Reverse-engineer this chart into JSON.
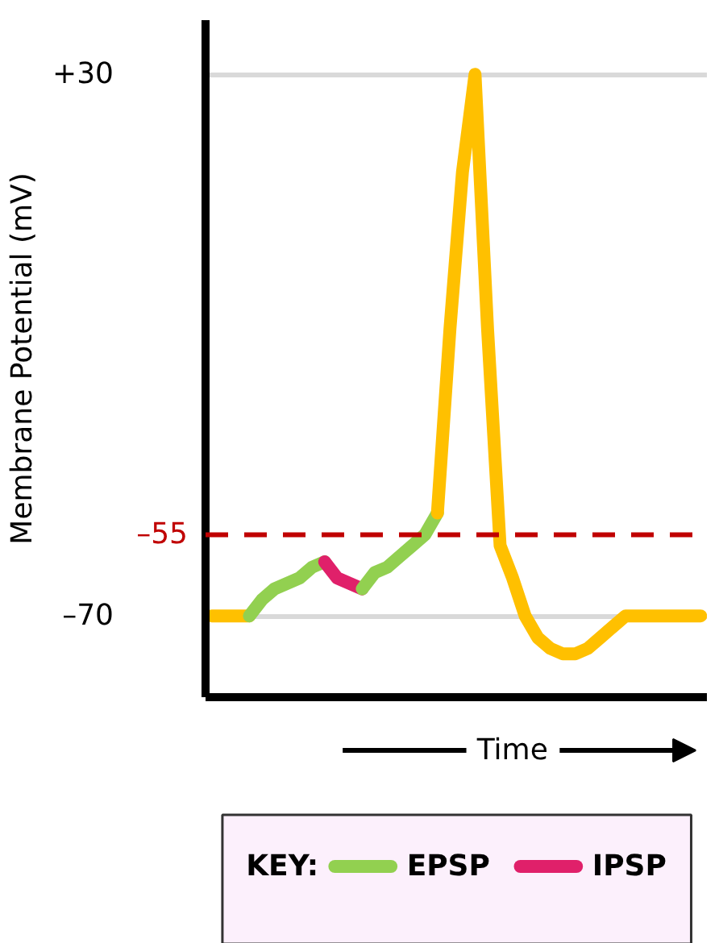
{
  "chart_data": {
    "type": "line",
    "xlabel": "Time",
    "ylabel": "Membrane Potential (mV)",
    "legend_title": "KEY:",
    "categories": [
      null,
      null,
      null,
      null,
      null,
      null,
      null,
      null,
      null,
      null,
      null,
      null,
      null,
      null,
      null,
      null,
      null,
      null,
      null,
      null,
      null,
      null,
      null,
      null,
      null,
      null,
      null,
      null,
      null,
      null,
      null,
      null,
      null,
      null,
      null,
      null,
      null,
      null,
      null,
      null
    ],
    "series": [
      {
        "color": "#ffc000",
        "values": [
          -70,
          -70,
          -70,
          -70,
          null,
          null,
          null,
          null,
          null,
          null,
          null,
          null,
          null,
          null,
          null,
          null,
          null,
          null,
          null,
          null,
          null,
          null,
          null,
          null,
          null,
          null,
          null,
          null,
          null,
          null,
          null,
          null,
          null,
          null,
          null,
          null,
          null,
          null,
          null,
          null
        ]
      },
      {
        "name": "EPSP",
        "color": "#92d050",
        "values": [
          null,
          null,
          null,
          -70,
          -67,
          -65,
          -64,
          -63,
          -61,
          -60,
          null,
          null,
          null,
          null,
          null,
          null,
          null,
          null,
          null,
          null,
          null,
          null,
          null,
          null,
          null,
          null,
          null,
          null,
          null,
          null,
          null,
          null,
          null,
          null,
          null,
          null,
          null,
          null,
          null,
          null
        ]
      },
      {
        "name": "IPSP",
        "color": "#e0206a",
        "values": [
          null,
          null,
          null,
          null,
          null,
          null,
          null,
          null,
          null,
          -60,
          -63,
          -64,
          -65,
          null,
          null,
          null,
          null,
          null,
          null,
          null,
          null,
          null,
          null,
          null,
          null,
          null,
          null,
          null,
          null,
          null,
          null,
          null,
          null,
          null,
          null,
          null,
          null,
          null,
          null,
          null
        ]
      },
      {
        "color": "#92d050",
        "values": [
          null,
          null,
          null,
          null,
          null,
          null,
          null,
          null,
          null,
          null,
          null,
          null,
          -65,
          -62,
          -61,
          -59,
          -57,
          -55,
          -51,
          null,
          null,
          null,
          null,
          null,
          null,
          null,
          null,
          null,
          null,
          null,
          null,
          null,
          null,
          null,
          null,
          null,
          null,
          null,
          null,
          null
        ]
      },
      {
        "color": "#ffc000",
        "values": [
          null,
          null,
          null,
          null,
          null,
          null,
          null,
          null,
          null,
          null,
          null,
          null,
          null,
          null,
          null,
          null,
          null,
          null,
          -51,
          -17,
          12,
          30,
          -17,
          -57,
          -63,
          -70,
          -74,
          -76,
          -77,
          -77,
          -76,
          -74,
          -72,
          -70,
          -70,
          -70,
          -70,
          -70,
          -70,
          -70
        ]
      }
    ],
    "ylim": [
      -85,
      40
    ],
    "yticks": [
      {
        "value": 30,
        "label": "+30"
      },
      {
        "value": -70,
        "label": "–70"
      }
    ],
    "ref_lines": [
      {
        "axis": "y",
        "value": -55,
        "label": "–55",
        "color": "#c00000",
        "line_style": "dashed"
      }
    ],
    "grid": "y",
    "legend": "bottom",
    "tick_labels": "y",
    "line_style": "solid"
  }
}
